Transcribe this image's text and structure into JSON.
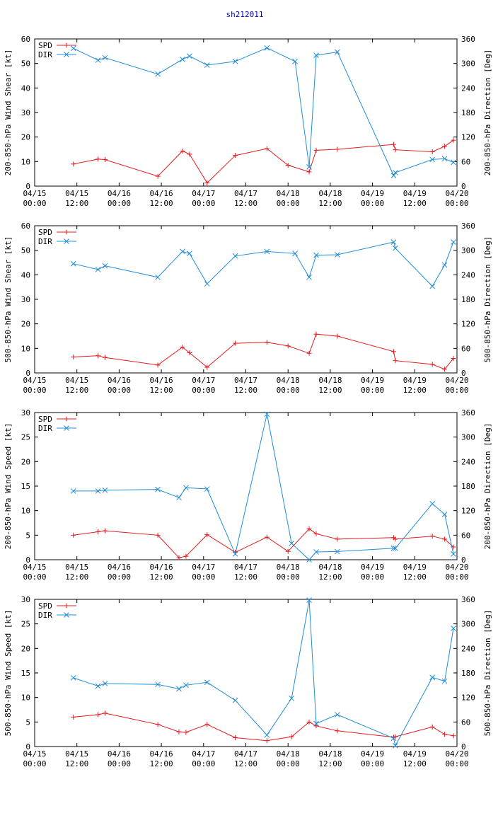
{
  "title": "sh212011",
  "colors": {
    "spd": "#e41a1c",
    "dir": "#1f8dd6",
    "title": "#0000cc"
  },
  "x_tick_dates": [
    "04/15",
    "04/15",
    "04/16",
    "04/16",
    "04/17",
    "04/17",
    "04/18",
    "04/18",
    "04/19",
    "04/19",
    "04/20"
  ],
  "x_tick_times": [
    "00:00",
    "12:00",
    "00:00",
    "12:00",
    "00:00",
    "12:00",
    "00:00",
    "12:00",
    "00:00",
    "12:00",
    "00:00"
  ],
  "chart_data": [
    {
      "type": "line",
      "ylabel_left": "200-850-hPa Wind Shear [kt]",
      "ylabel_right": "200-850-hPa Direction [Deg]",
      "xlim_hours": [
        0,
        120
      ],
      "ylim_left": [
        0,
        60
      ],
      "ylim_right": [
        0,
        360
      ],
      "yticks_left": [
        "0",
        "10",
        "20",
        "30",
        "40",
        "50",
        "60"
      ],
      "yticks_right": [
        "0",
        "60",
        "120",
        "180",
        "240",
        "300",
        "360"
      ],
      "legend": [
        "SPD",
        "DIR"
      ],
      "series": [
        {
          "name": "SPD",
          "axis": "left",
          "x": [
            11,
            18,
            20,
            35,
            42,
            44,
            49,
            57,
            66,
            72,
            78,
            80,
            86,
            102,
            102.5,
            113,
            116.5,
            119
          ],
          "values": [
            9,
            11,
            10.8,
            4,
            14.3,
            13,
            1.3,
            12.5,
            15.3,
            8.5,
            5.8,
            14.6,
            15,
            17,
            14.8,
            14,
            16.2,
            18.7
          ]
        },
        {
          "name": "DIR",
          "axis": "right",
          "x": [
            11,
            18,
            20,
            35,
            42,
            44,
            49,
            57,
            66,
            74,
            78,
            80,
            86,
            102,
            102.5,
            113,
            116.5,
            119
          ],
          "values": [
            337,
            308,
            314,
            274,
            310,
            318,
            296,
            305,
            338,
            305,
            47,
            320,
            328,
            26,
            33,
            65,
            67,
            58
          ]
        }
      ]
    },
    {
      "type": "line",
      "ylabel_left": "500-850-hPa Wind Shear [kt]",
      "ylabel_right": "500-850-hPa Direction [Deg]",
      "xlim_hours": [
        0,
        120
      ],
      "ylim_left": [
        0,
        60
      ],
      "ylim_right": [
        0,
        360
      ],
      "yticks_left": [
        "0",
        "10",
        "20",
        "30",
        "40",
        "50",
        "60"
      ],
      "yticks_right": [
        "0",
        "60",
        "120",
        "180",
        "240",
        "300",
        "360"
      ],
      "legend": [
        "SPD",
        "DIR"
      ],
      "series": [
        {
          "name": "SPD",
          "axis": "left",
          "x": [
            11,
            18,
            20,
            35,
            42,
            44,
            49,
            57,
            66,
            72,
            78,
            80,
            86,
            102,
            102.5,
            113,
            116.5,
            119
          ],
          "values": [
            6.5,
            7,
            6.3,
            3.2,
            10.5,
            8.2,
            2.3,
            12.1,
            12.5,
            11,
            8,
            15.8,
            15,
            8.7,
            5,
            3.5,
            1.5,
            5.9
          ]
        },
        {
          "name": "DIR",
          "axis": "right",
          "x": [
            11,
            18,
            20,
            35,
            42,
            44,
            49,
            57,
            66,
            74,
            78,
            80,
            86,
            102,
            102.5,
            113,
            116.5,
            119
          ],
          "values": [
            267,
            253,
            262,
            234,
            297,
            292,
            218,
            286,
            297,
            292,
            234,
            288,
            289,
            320,
            305,
            212,
            264,
            320
          ]
        }
      ]
    },
    {
      "type": "line",
      "ylabel_left": "200-850-hPa Wind Speed [kt]",
      "ylabel_right": "200-850-hPa Direction [Deg]",
      "xlim_hours": [
        0,
        120
      ],
      "ylim_left": [
        0,
        30
      ],
      "ylim_right": [
        0,
        360
      ],
      "yticks_left": [
        "0",
        "5",
        "10",
        "15",
        "20",
        "25",
        "30"
      ],
      "yticks_right": [
        "0",
        "60",
        "120",
        "180",
        "240",
        "300",
        "360"
      ],
      "legend": [
        "SPD",
        "DIR"
      ],
      "series": [
        {
          "name": "SPD",
          "axis": "left",
          "x": [
            11,
            18,
            20,
            35,
            41,
            43,
            49,
            57,
            66,
            72,
            78,
            80,
            86,
            102,
            102.5,
            113,
            116.5,
            119
          ],
          "values": [
            5,
            5.7,
            5.9,
            5,
            0.4,
            0.7,
            5.1,
            1.5,
            4.6,
            1.7,
            6.3,
            5.3,
            4.2,
            4.5,
            4.2,
            4.8,
            4.2,
            2.6
          ]
        },
        {
          "name": "DIR",
          "axis": "right",
          "x": [
            11,
            18,
            20,
            35,
            41,
            43,
            49,
            57,
            66,
            73,
            78,
            80,
            86,
            102,
            102.5,
            113,
            116.5,
            119
          ],
          "values": [
            168,
            168,
            170,
            172,
            152,
            176,
            173,
            14,
            356,
            40,
            0,
            19,
            20,
            28,
            28,
            137,
            111,
            14
          ]
        }
      ]
    },
    {
      "type": "line",
      "ylabel_left": "500-850-hPa Wind Speed [kt]",
      "ylabel_right": "500-850-hPa Direction [Deg]",
      "xlim_hours": [
        0,
        120
      ],
      "ylim_left": [
        0,
        30
      ],
      "ylim_right": [
        0,
        360
      ],
      "yticks_left": [
        "0",
        "5",
        "10",
        "15",
        "20",
        "25",
        "30"
      ],
      "yticks_right": [
        "0",
        "60",
        "120",
        "180",
        "240",
        "300",
        "360"
      ],
      "legend": [
        "SPD",
        "DIR"
      ],
      "series": [
        {
          "name": "SPD",
          "axis": "left",
          "x": [
            11,
            18,
            20,
            35,
            41,
            43,
            49,
            57,
            66,
            73,
            78,
            80,
            86,
            102,
            102.5,
            113,
            116.5,
            119
          ],
          "values": [
            6,
            6.5,
            6.8,
            4.5,
            3,
            2.9,
            4.5,
            1.8,
            1.2,
            2,
            5,
            4.2,
            3.2,
            1.9,
            2,
            4,
            2.5,
            2.2
          ]
        },
        {
          "name": "DIR",
          "axis": "right",
          "x": [
            11,
            18,
            20,
            35,
            41,
            43,
            49,
            57,
            66,
            73,
            78,
            80,
            86,
            102,
            102.5,
            113,
            116.5,
            119
          ],
          "values": [
            168,
            148,
            154,
            152,
            141,
            150,
            157,
            113,
            28,
            118,
            358,
            56,
            78,
            20,
            2,
            169,
            160,
            289
          ]
        }
      ]
    }
  ]
}
